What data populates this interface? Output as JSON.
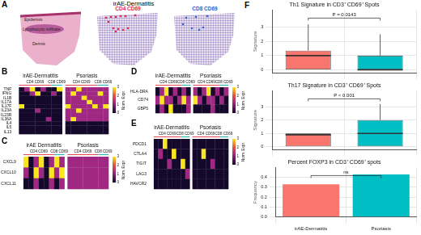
{
  "panel_a": {
    "label": "A",
    "title": "irAE-Dermatitis",
    "regions": [
      "Epidermis",
      "Lymphocytic infiltrate",
      "Dermis"
    ],
    "maps": [
      {
        "name": "CD4 CD69",
        "color": "#e0284a"
      },
      {
        "name": "CD8 CD69",
        "color": "#2f5fd0"
      }
    ]
  },
  "chart_data": [
    {
      "type": "heatmap",
      "label": "B",
      "rows": [
        "TNF",
        "IFNG",
        "IL1B",
        "IL17A",
        "IL17F",
        "IL23A",
        "IL23R",
        "IL36A",
        "IL4",
        "IL5",
        "IL13"
      ],
      "groups": [
        {
          "name": "irAE-Dermatitis",
          "subgroups": [
            {
              "name": "CD4 CD69",
              "color": "#e8474f",
              "cells": [
                [
                  0,
                  1.2,
                  3,
                  0,
                  1.2,
                  0
                ],
                [
                  0,
                  0,
                  1.2,
                  3,
                  0,
                  0
                ],
                [
                  0,
                  0,
                  0,
                  0,
                  0,
                  0
                ],
                [
                  0,
                  0,
                  0,
                  0,
                  0,
                  0
                ],
                [
                  3,
                  0,
                  0,
                  0,
                  0,
                  0
                ],
                [
                  0,
                  0,
                  0,
                  1.2,
                  0,
                  0
                ],
                [
                  0,
                  0,
                  0,
                  0,
                  0,
                  0
                ],
                [
                  0,
                  0,
                  0,
                  0,
                  0,
                  1.2
                ],
                [
                  0,
                  0,
                  0,
                  0,
                  0,
                  0
                ],
                [
                  0,
                  0,
                  0,
                  0,
                  0,
                  0
                ],
                [
                  0,
                  0,
                  0,
                  0,
                  0,
                  0
                ]
              ]
            },
            {
              "name": "CD8 CD69",
              "color": "#2bb5b8",
              "cells": [
                [
                  0,
                  3
                ],
                [
                  1.2,
                  0
                ],
                [
                  0,
                  0
                ],
                [
                  0,
                  0
                ],
                [
                  0,
                  0
                ],
                [
                  0,
                  0
                ],
                [
                  0,
                  0
                ],
                [
                  0,
                  0
                ],
                [
                  0,
                  0
                ],
                [
                  0,
                  0
                ],
                [
                  0,
                  0
                ]
              ]
            }
          ]
        },
        {
          "name": "Psoriasis",
          "subgroups": [
            {
              "name": "CD4 CD69",
              "color": "#e8474f",
              "cells": [
                [
                  1.2,
                  1.2,
                  3,
                  1.2,
                  1.2,
                  1.2
                ],
                [
                  1.2,
                  3,
                  1.2,
                  1.2,
                  1.2,
                  1.2
                ],
                [
                  1.2,
                  1.2,
                  1.2,
                  3,
                  1.2,
                  1.2
                ],
                [
                  1.2,
                  1.2,
                  1.2,
                  1.2,
                  3,
                  1.2
                ],
                [
                  3,
                  1.2,
                  1.2,
                  1.2,
                  1.2,
                  3
                ],
                [
                  1.2,
                  1.2,
                  3,
                  1.2,
                  1.2,
                  1.2
                ],
                [
                  1.2,
                  1.2,
                  1.2,
                  1.2,
                  1.2,
                  1.2
                ],
                [
                  1.2,
                  3,
                  1.2,
                  1.2,
                  1.2,
                  1.2
                ],
                [
                  0,
                  0,
                  0,
                  0,
                  0,
                  0
                ],
                [
                  0,
                  0,
                  0,
                  0,
                  0,
                  0
                ],
                [
                  0,
                  0,
                  0,
                  0,
                  0,
                  0
                ]
              ]
            },
            {
              "name": "CD8 CD69",
              "color": "#2bb5b8",
              "cells": [
                [
                  1.2,
                  1.2
                ],
                [
                  3,
                  1.2
                ],
                [
                  1.2,
                  1.2
                ],
                [
                  1.2,
                  1.2
                ],
                [
                  1.2,
                  3
                ],
                [
                  1.2,
                  1.2
                ],
                [
                  1.2,
                  1.2
                ],
                [
                  1.2,
                  1.2
                ],
                [
                  0,
                  0
                ],
                [
                  0,
                  0
                ],
                [
                  0,
                  0
                ]
              ]
            }
          ]
        }
      ],
      "colorbar": {
        "title": "Norm. Expr.",
        "range": [
          0,
          3
        ],
        "ticks": [
          0,
          1,
          2,
          3
        ]
      }
    },
    {
      "type": "heatmap",
      "label": "C",
      "rows": [
        "CXCL9",
        "CXCL10",
        "CXCL11"
      ],
      "groups": [
        {
          "name": "irAE Dermatitis",
          "subgroups": [
            {
              "name": "CD4 CD69",
              "color": "#e8474f",
              "cells": [
                [
                  3,
                  0,
                  1.2,
                  3,
                  0,
                  1.2
                ],
                [
                  1.2,
                  0,
                  3,
                  1.2,
                  0,
                  3
                ],
                [
                  0,
                  0,
                  1.2,
                  0,
                  0,
                  1.2
                ]
              ]
            },
            {
              "name": "CD8 CD69",
              "color": "#2bb5b8",
              "cells": [
                [
                  3,
                  1.2
                ],
                [
                  1.2,
                  3
                ],
                [
                  0,
                  1.2
                ]
              ]
            }
          ]
        },
        {
          "name": "Psoriasis",
          "subgroups": [
            {
              "name": "CD4 CD69",
              "color": "#e8474f",
              "cells": [
                [
                  1.2,
                  1.2,
                  1.2,
                  1.2,
                  1.2,
                  1.2
                ],
                [
                  1.2,
                  1.2,
                  1.2,
                  1.2,
                  1.2,
                  1.2
                ],
                [
                  1.2,
                  1.2,
                  1.2,
                  1.2,
                  1.2,
                  1.2
                ]
              ]
            },
            {
              "name": "CD8 CD69",
              "color": "#2bb5b8",
              "cells": [
                [
                  1.2,
                  1.2
                ],
                [
                  1.2,
                  1.2
                ],
                [
                  1.2,
                  1.2
                ]
              ]
            }
          ]
        }
      ],
      "colorbar": {
        "title": "Norm. Expr.",
        "range": [
          0,
          3
        ],
        "ticks": [
          0,
          1,
          2,
          3
        ]
      }
    },
    {
      "type": "heatmap",
      "label": "D",
      "rows": [
        "HLA-DRA",
        "CD74",
        "GBP5"
      ],
      "groups": [
        {
          "name": "irAE-Dermatitis",
          "subgroups": [
            {
              "name": "CD4 CD69",
              "color": "#e8474f",
              "cells": [
                [
                  0,
                  1.2,
                  3,
                  0,
                  1.2,
                  0
                ],
                [
                  1.2,
                  3,
                  1.2,
                  1.2,
                  0,
                  1.2
                ],
                [
                  0,
                  1.2,
                  0,
                  3,
                  0,
                  0
                ]
              ]
            },
            {
              "name": "CD8 CD69",
              "color": "#2bb5b8",
              "cells": [
                [
                  1.2,
                  0
                ],
                [
                  3,
                  1.2
                ],
                [
                  0,
                  1.2
                ]
              ]
            }
          ]
        },
        {
          "name": "Psoriasis",
          "subgroups": [
            {
              "name": "CD4 CD69",
              "color": "#e8474f",
              "cells": [
                [
                  1.2,
                  0,
                  1.2,
                  3,
                  0,
                  1.2
                ],
                [
                  3,
                  1.2,
                  0,
                  1.2,
                  1.2,
                  0
                ],
                [
                  0,
                  0,
                  0,
                  0,
                  1.2,
                  0
                ]
              ]
            },
            {
              "name": "CD8 CD69",
              "color": "#2bb5b8",
              "cells": [
                [
                  0,
                  1.2
                ],
                [
                  1.2,
                  0
                ],
                [
                  0,
                  0
                ]
              ]
            }
          ]
        }
      ],
      "colorbar": {
        "title": "Norm. Expr.",
        "range": [
          0,
          3
        ],
        "ticks": [
          0,
          1,
          2,
          3
        ]
      }
    },
    {
      "type": "heatmap",
      "label": "E",
      "rows": [
        "PDCD1",
        "CTLA4",
        "TIGIT",
        "LAG3",
        "HAVCR2"
      ],
      "groups": [
        {
          "name": "irAE-Dermatitis",
          "subgroups": [
            {
              "name": "CD4 CD69",
              "color": "#e8474f",
              "cells": [
                [
                  0,
                  0,
                  3,
                  0,
                  0,
                  0
                ],
                [
                  0,
                  1.2,
                  0,
                  0,
                  3,
                  0
                ],
                [
                  0,
                  0,
                  0,
                  1.2,
                  0,
                  0
                ],
                [
                  0,
                  0,
                  0,
                  0,
                  0,
                  0
                ],
                [
                  0,
                  0,
                  0,
                  0,
                  0,
                  0
                ]
              ]
            },
            {
              "name": "CD8 CD69",
              "color": "#2bb5b8",
              "cells": [
                [
                  0,
                  0
                ],
                [
                  0,
                  0
                ],
                [
                  3,
                  0
                ],
                [
                  0,
                  1.2
                ],
                [
                  0,
                  0
                ]
              ]
            }
          ]
        },
        {
          "name": "Psoriasis",
          "subgroups": [
            {
              "name": "CD4 CD69",
              "color": "#e8474f",
              "cells": [
                [
                  0,
                  0,
                  0,
                  0,
                  0,
                  0
                ],
                [
                  0,
                  0,
                  3,
                  0,
                  0,
                  0
                ],
                [
                  0,
                  0,
                  0,
                  0,
                  1.2,
                  0
                ],
                [
                  0,
                  0,
                  0,
                  0,
                  0,
                  0
                ],
                [
                  0,
                  0,
                  0,
                  0,
                  0,
                  0
                ]
              ]
            },
            {
              "name": "CD8 CD69",
              "color": "#2bb5b8",
              "cells": [
                [
                  0,
                  0
                ],
                [
                  0,
                  0
                ],
                [
                  0,
                  0
                ],
                [
                  0,
                  0
                ],
                [
                  0,
                  0
                ]
              ]
            }
          ]
        }
      ],
      "colorbar": {
        "title": "Norm. Expr.",
        "range": [
          0,
          3
        ],
        "ticks": [
          0,
          1,
          2,
          3
        ]
      }
    },
    {
      "type": "box",
      "label": "F",
      "title": "Th1 Signature in CD3⁺ CD69⁺ Spots",
      "y_label": "Signature",
      "categories": [
        null,
        null
      ],
      "boxes": [
        {
          "color": "#f8766d",
          "min": 0,
          "q1": 0,
          "median": 1,
          "q3": 1.35,
          "max": 3.2
        },
        {
          "color": "#00bfc4",
          "min": 0,
          "q1": 0,
          "median": 0,
          "q3": 1,
          "max": 2.5
        }
      ],
      "ylim": [
        -0.2,
        4.2
      ],
      "yticks": [
        0,
        1,
        2,
        3
      ],
      "grid": true,
      "tick_labels": "y",
      "annotation": "P = 0.0143"
    },
    {
      "type": "box",
      "title": "Th17 Signature in CD3⁺ CD69⁺ Spots",
      "y_label": "Signature",
      "categories": [
        null,
        null
      ],
      "boxes": [
        {
          "color": "#f8766d",
          "min": 0,
          "q1": 0,
          "median": 0.9,
          "q3": 1,
          "max": 1
        },
        {
          "color": "#00bfc4",
          "min": 0,
          "q1": 0,
          "median": 1,
          "q3": 2,
          "max": 3.2
        }
      ],
      "ylim": [
        -0.2,
        4.2
      ],
      "yticks": [
        0,
        1,
        2,
        3
      ],
      "grid": true,
      "tick_labels": "y",
      "annotation": "P < 0.001"
    },
    {
      "type": "bar",
      "title": "Percent FOXP3 in CD3⁺ CD69⁺ spots",
      "y_label": "Frequency",
      "categories": [
        "irAE-Dermatitis",
        "Psoriasis"
      ],
      "values": [
        0.33,
        0.43
      ],
      "colors": [
        "#f8766d",
        "#00bfc4"
      ],
      "ylim": [
        0,
        0.5
      ],
      "yticks": [
        {
          "value": 0,
          "label": "0.0"
        },
        0.1,
        0.2,
        0.3,
        0.4
      ],
      "grid": true,
      "annotation": "ns"
    }
  ]
}
